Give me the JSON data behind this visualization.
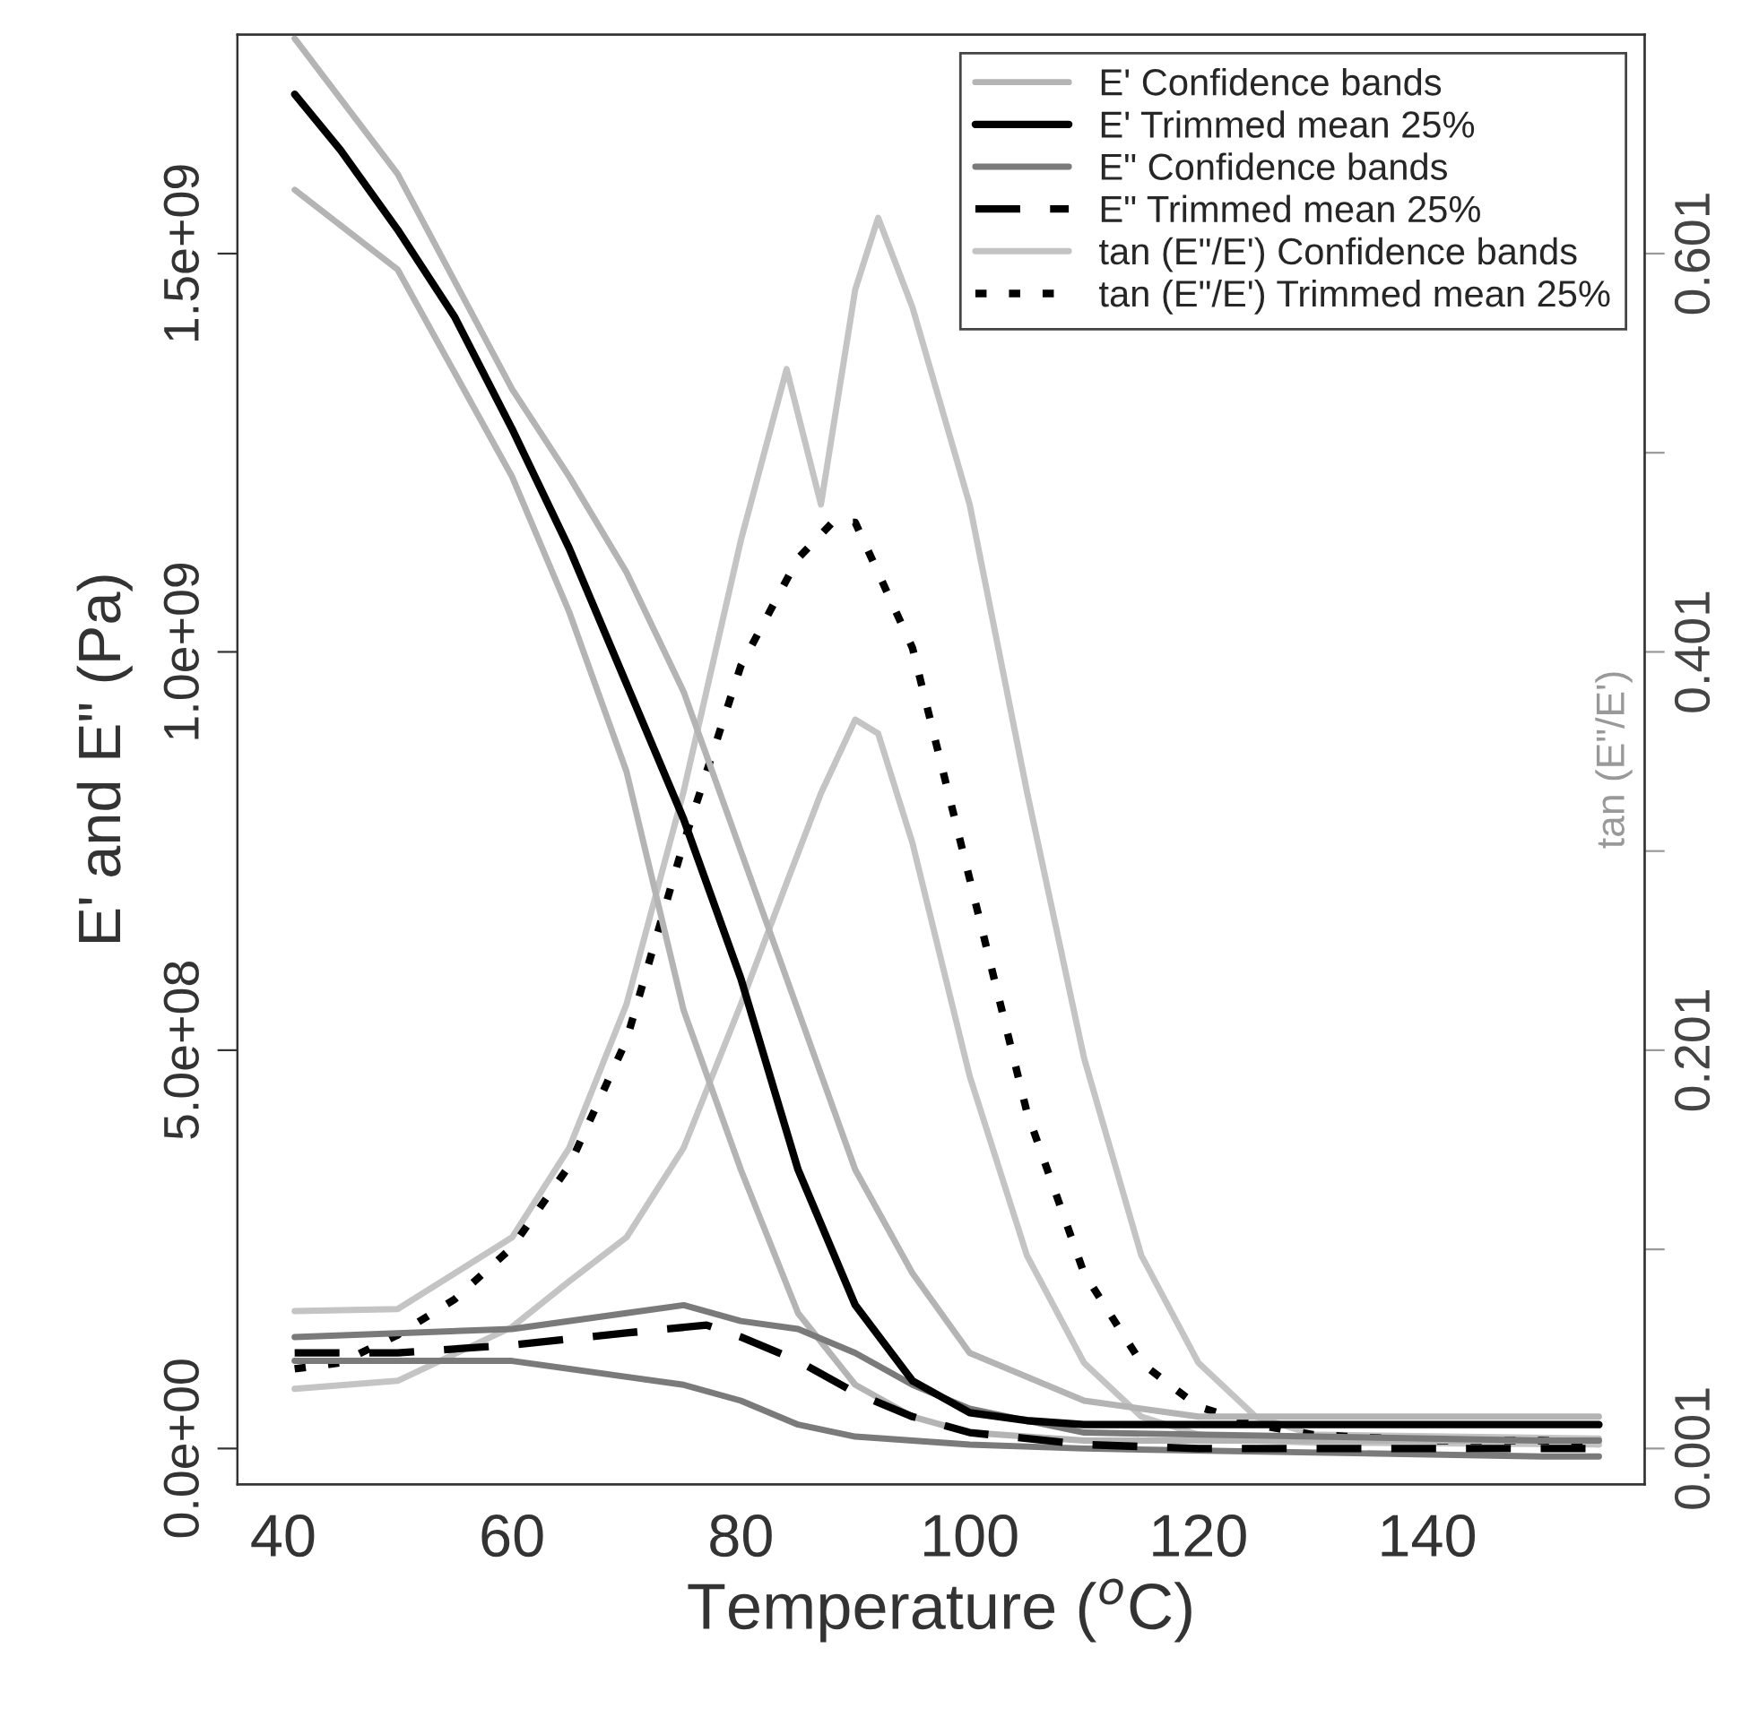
{
  "chart_data": {
    "type": "line",
    "xlabel": "Temperature ($^{o}$C)",
    "ylabel": "E' and E\" (Pa)",
    "y2label": "tan (E\"/E')",
    "xlim": [
      36,
      159
    ],
    "xticks": [
      40,
      60,
      80,
      100,
      120,
      140
    ],
    "ylim": [
      -45000000.0,
      1775000000.0
    ],
    "yticks": [
      {
        "value": 0,
        "label": "0.0e+00"
      },
      {
        "value": 500000000.0,
        "label": "5.0e+08"
      },
      {
        "value": 1000000000.0,
        "label": "1.0e+09"
      },
      {
        "value": 1500000000.0,
        "label": "1.5e+09"
      }
    ],
    "y2lim": [
      -0.017,
      0.711
    ],
    "y2ticks": [
      0.001,
      {
        "value": 0.101,
        "label": null
      },
      0.201,
      {
        "value": 0.301,
        "label": null
      },
      0.401,
      {
        "value": 0.501,
        "label": null
      },
      0.601
    ],
    "legend": "top right",
    "grid": false,
    "series": [
      {
        "name": "E' Confidence bands",
        "color": "#b4b4b4",
        "line_style": "solid",
        "x": [
          41,
          50,
          60,
          65,
          70,
          75,
          80,
          85,
          90,
          95,
          100,
          110,
          120,
          150,
          155
        ],
        "values": [
          1770000000.0,
          1600000000.0,
          1330000000.0,
          1220000000.0,
          1100000000.0,
          950000000.0,
          750000000.0,
          550000000.0,
          350000000.0,
          220000000.0,
          120000000.0,
          60000000.0,
          40000000.0,
          40000000.0,
          40000000.0
        ]
      },
      {
        "color": "#b4b4b4",
        "line_style": "solid",
        "x": [
          41,
          50,
          60,
          65,
          70,
          75,
          80,
          85,
          90,
          95,
          100,
          110,
          120,
          150,
          155
        ],
        "values": [
          1580000000.0,
          1480000000.0,
          1220000000.0,
          1050000000.0,
          850000000.0,
          550000000.0,
          350000000.0,
          170000000.0,
          80000000.0,
          40000000.0,
          20000000.0,
          10000000.0,
          10000000.0,
          10000000.0,
          10000000.0
        ]
      },
      {
        "name": "E' Trimmed mean 25%",
        "color": "#000000",
        "line_style": "solid",
        "x": [
          41,
          45,
          50,
          55,
          60,
          65,
          70,
          75,
          80,
          85,
          90,
          95,
          100,
          105,
          110,
          120,
          130,
          140,
          150,
          155
        ],
        "values": [
          1700000000.0,
          1630000000.0,
          1530000000.0,
          1420000000.0,
          1280000000.0,
          1130000000.0,
          960000000.0,
          790000000.0,
          590000000.0,
          350000000.0,
          180000000.0,
          85000000.0,
          45000000.0,
          35000000.0,
          30000000.0,
          30000000.0,
          30000000.0,
          30000000.0,
          30000000.0,
          30000000.0
        ]
      },
      {
        "name": "E\" Confidence bands",
        "color": "#7a7a7a",
        "line_style": "solid",
        "x": [
          41,
          60,
          70,
          75,
          80,
          85,
          90,
          95,
          100,
          110,
          150,
          155
        ],
        "values": [
          140000000.0,
          150000000.0,
          170000000.0,
          180000000.0,
          160000000.0,
          150000000.0,
          120000000.0,
          80000000.0,
          50000000.0,
          20000000.0,
          10000000.0,
          10000000.0
        ]
      },
      {
        "color": "#7a7a7a",
        "line_style": "solid",
        "x": [
          41,
          60,
          70,
          75,
          80,
          85,
          90,
          95,
          100,
          110,
          150,
          155
        ],
        "values": [
          110000000.0,
          110000000.0,
          90000000.0,
          80000000.0,
          60000000.0,
          30000000.0,
          15000000.0,
          10000000.0,
          5000000.0,
          0,
          -10000000.0,
          -10000000.0
        ]
      },
      {
        "name": "E\" Trimmed mean 25%",
        "color": "#000000",
        "line_style": "dashed",
        "x": [
          41,
          50,
          60,
          70,
          77,
          80,
          85,
          90,
          95,
          100,
          110,
          120,
          150,
          155
        ],
        "values": [
          120000000.0,
          120000000.0,
          130000000.0,
          145000000.0,
          155000000.0,
          140000000.0,
          110000000.0,
          70000000.0,
          40000000.0,
          20000000.0,
          5000000.0,
          0,
          0,
          0
        ]
      },
      {
        "name": "tan (E\"/E') Confidence bands",
        "axis": "y2",
        "color": "#c4c4c4",
        "line_style": "solid",
        "x": [
          41,
          50,
          60,
          65,
          70,
          75,
          80,
          84,
          87,
          90,
          92,
          95,
          100,
          105,
          110,
          115,
          120,
          125,
          130,
          155
        ],
        "values": [
          0.07,
          0.071,
          0.107,
          0.152,
          0.224,
          0.331,
          0.457,
          0.543,
          0.475,
          0.583,
          0.619,
          0.574,
          0.475,
          0.331,
          0.197,
          0.098,
          0.044,
          0.017,
          0.008,
          0.006
        ]
      },
      {
        "axis": "y2",
        "color": "#c4c4c4",
        "line_style": "solid",
        "x": [
          41,
          50,
          60,
          65,
          70,
          75,
          80,
          84,
          87,
          90,
          92,
          95,
          100,
          105,
          110,
          115,
          120,
          125,
          130,
          155
        ],
        "values": [
          0.031,
          0.035,
          0.062,
          0.085,
          0.107,
          0.152,
          0.224,
          0.285,
          0.33,
          0.367,
          0.36,
          0.305,
          0.188,
          0.098,
          0.044,
          0.017,
          0.008,
          0.005,
          0.004,
          0.003
        ]
      },
      {
        "name": "tan (E\"/E') Trimmed mean 25%",
        "axis": "y2",
        "color": "#000000",
        "line_style": "dotted",
        "x": [
          41,
          45,
          50,
          55,
          60,
          65,
          70,
          75,
          80,
          85,
          88,
          90,
          95,
          100,
          105,
          110,
          115,
          120,
          125,
          130,
          140,
          150,
          155
        ],
        "values": [
          0.041,
          0.044,
          0.058,
          0.076,
          0.102,
          0.143,
          0.206,
          0.305,
          0.394,
          0.448,
          0.466,
          0.466,
          0.403,
          0.287,
          0.17,
          0.089,
          0.044,
          0.022,
          0.013,
          0.008,
          0.005,
          0.005,
          0.004
        ]
      }
    ]
  }
}
